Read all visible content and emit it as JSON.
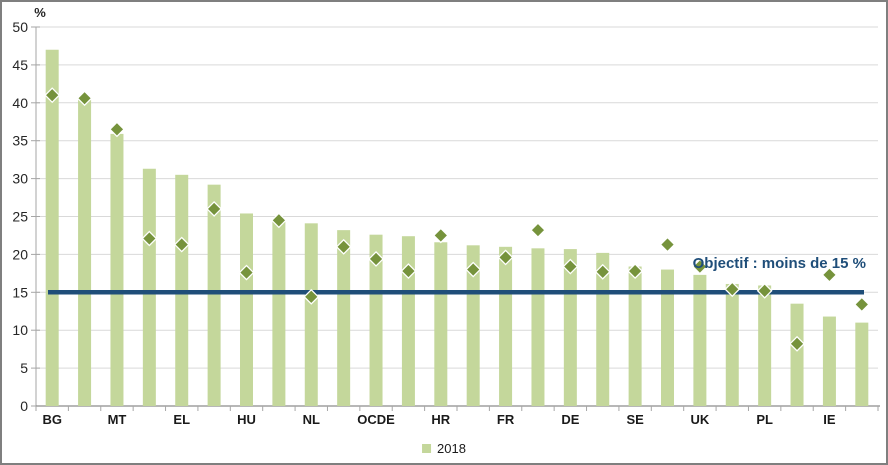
{
  "chart_data": {
    "type": "bar",
    "title": "",
    "unit_label": "%",
    "ylim": [
      0,
      50
    ],
    "ytick_step": 5,
    "grid": "horizontal",
    "categories": [
      "BG",
      "",
      "MT",
      "",
      "EL",
      "",
      "HU",
      "",
      "NL",
      "",
      "OCDE",
      "",
      "HR",
      "",
      "FR",
      "",
      "DE",
      "",
      "SE",
      "",
      "UK",
      "",
      "PL",
      "",
      "IE",
      ""
    ],
    "series": [
      {
        "name": "2018",
        "type": "bar",
        "color": "#C4D79B",
        "values": [
          47.0,
          40.4,
          35.9,
          31.3,
          30.5,
          29.2,
          25.4,
          24.3,
          24.1,
          23.2,
          22.6,
          22.4,
          21.6,
          21.2,
          21.0,
          20.8,
          20.7,
          20.2,
          18.4,
          18.0,
          17.3,
          16.1,
          15.9,
          13.5,
          11.8,
          11.0
        ]
      },
      {
        "name": "",
        "type": "scatter",
        "marker": "diamond",
        "color": "#76933C",
        "values": [
          41.0,
          40.6,
          36.5,
          22.1,
          21.3,
          26.0,
          17.6,
          24.5,
          14.4,
          21.0,
          19.4,
          17.8,
          22.5,
          18.0,
          19.6,
          23.2,
          18.4,
          17.7,
          17.8,
          21.3,
          18.4,
          15.4,
          15.2,
          8.2,
          17.3,
          13.4
        ]
      }
    ],
    "reference_line": {
      "value": 15,
      "label": "Objectif : moins de 15 %",
      "color": "#1F4E79"
    },
    "legend": {
      "position": "bottom-center",
      "items": [
        {
          "label": "2018",
          "color": "#C4D79B"
        }
      ]
    },
    "axis_colors": {
      "gridline": "#D9D9D9",
      "axis_line": "#A6A6A6",
      "x_axis_line": "#8C8C8C",
      "tick": "#A6A6A6"
    }
  }
}
